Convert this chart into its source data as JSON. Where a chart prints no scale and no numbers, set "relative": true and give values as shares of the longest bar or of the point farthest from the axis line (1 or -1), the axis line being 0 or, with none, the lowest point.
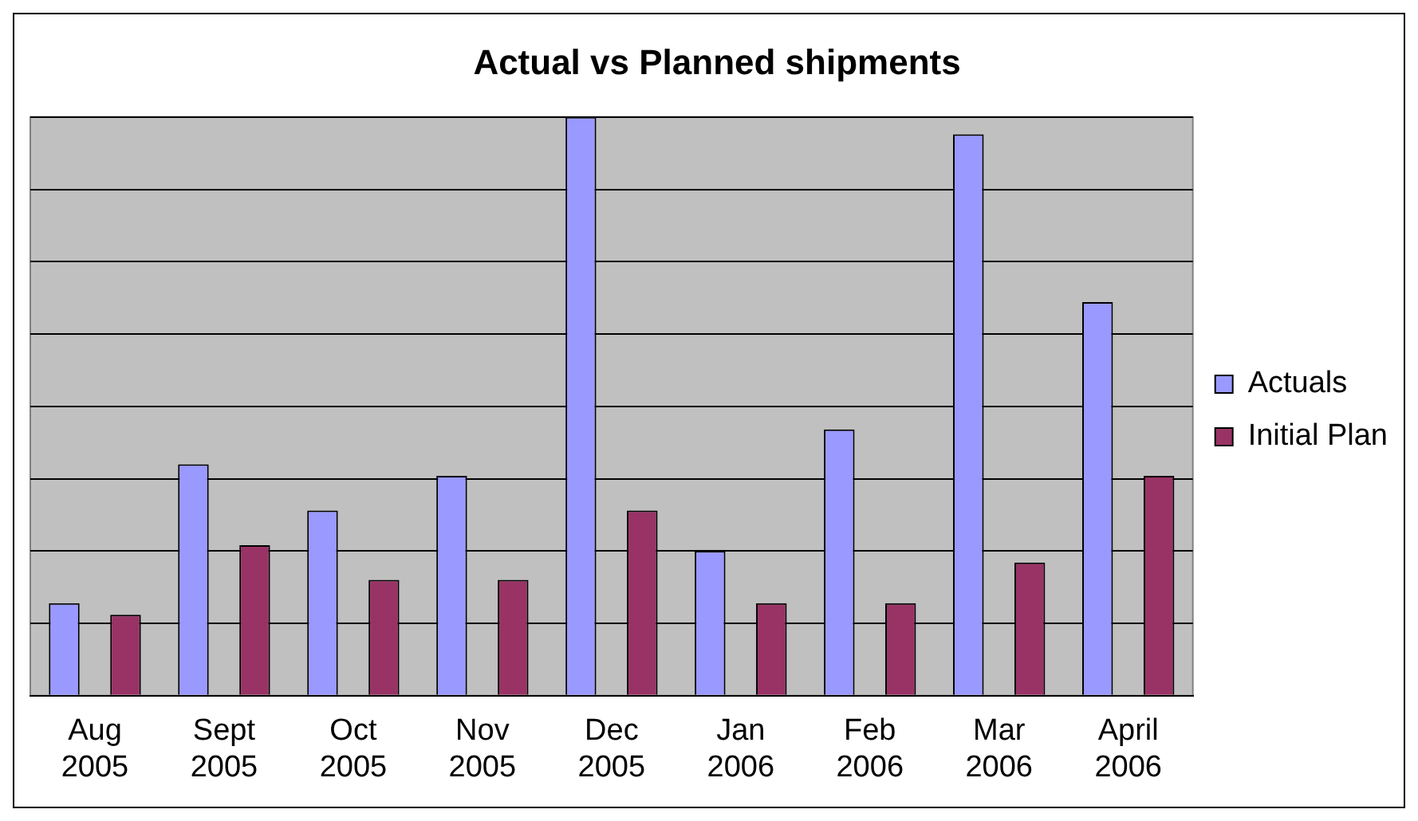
{
  "chart_data": {
    "type": "bar",
    "title": "Actual vs Planned shipments",
    "relative": true,
    "categories": [
      "Aug 2005",
      "Sept 2005",
      "Oct 2005",
      "Nov 2005",
      "Dec 2005",
      "Jan 2006",
      "Feb 2006",
      "Mar 2006",
      "April 2006"
    ],
    "series": [
      {
        "name": "Actuals",
        "color": "#9999ff",
        "values": [
          0.16,
          0.4,
          0.32,
          0.38,
          1,
          0.25,
          0.46,
          0.97,
          0.68
        ]
      },
      {
        "name": "Initial Plan",
        "color": "#993366",
        "values": [
          0.14,
          0.26,
          0.2,
          0.2,
          0.32,
          0.16,
          0.16,
          0.23,
          0.38
        ]
      }
    ],
    "grid": "y",
    "legend": "right"
  }
}
